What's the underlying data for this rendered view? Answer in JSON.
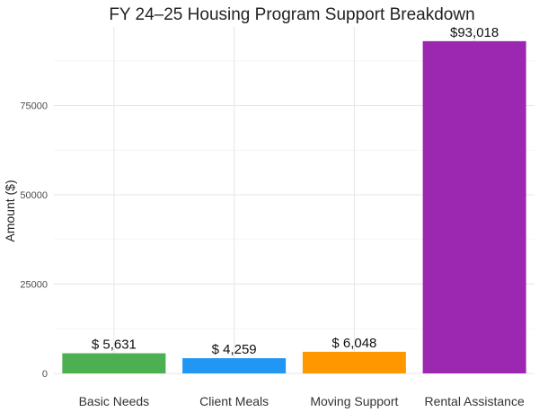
{
  "chart_data": {
    "type": "bar",
    "title": "FY 24–25 Housing Program Support Breakdown",
    "xlabel": "",
    "ylabel": "Amount ($)",
    "categories": [
      "Basic Needs",
      "Client Meals",
      "Moving Support",
      "Rental Assistance"
    ],
    "values": [
      5631,
      4259,
      6048,
      93018
    ],
    "data_labels": [
      "$ 5,631",
      "$ 4,259",
      "$ 6,048",
      "$93,018"
    ],
    "colors": [
      "#4caf50",
      "#2196f3",
      "#ff9800",
      "#9c27b0"
    ],
    "ylim": [
      0,
      97000
    ],
    "yticks": [
      0,
      25000,
      50000,
      75000
    ],
    "ytick_labels": [
      "0",
      "25000",
      "50000",
      "75000"
    ],
    "grid": true,
    "legend": "none"
  }
}
